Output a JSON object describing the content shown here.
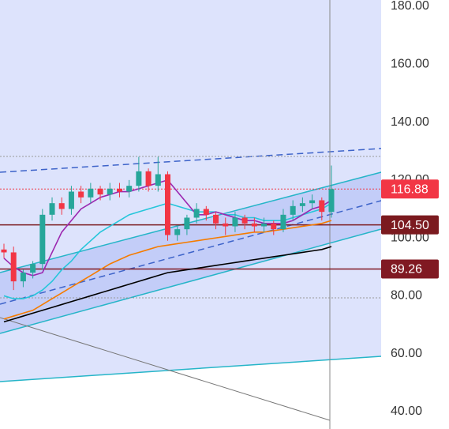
{
  "chart_data": {
    "type": "candlestick",
    "ylim": [
      40,
      180
    ],
    "yticks": [
      {
        "value": 40,
        "label": "40.00"
      },
      {
        "value": 60,
        "label": "60.00"
      },
      {
        "value": 80,
        "label": "80.00"
      },
      {
        "value": 100,
        "label": "100.00"
      },
      {
        "value": 120,
        "label": "120.00"
      },
      {
        "value": 140,
        "label": "140.00"
      },
      {
        "value": 160,
        "label": "160.00"
      },
      {
        "value": 180,
        "label": "180.00"
      }
    ],
    "up_color": "#26a69a",
    "down_color": "#f23645",
    "open": [
      96,
      95,
      85,
      88,
      91,
      108,
      112,
      110,
      116,
      114,
      117,
      115,
      117,
      116,
      118,
      123,
      118,
      122,
      101,
      103,
      107,
      110,
      108,
      105,
      104,
      107,
      105,
      104,
      105,
      103,
      108,
      111,
      112,
      113,
      109
    ],
    "close": [
      95,
      85,
      88,
      91,
      108,
      112,
      110,
      116,
      114,
      117,
      115,
      117,
      116,
      118,
      123,
      118,
      122,
      101,
      103,
      107,
      110,
      108,
      105,
      104,
      107,
      105,
      104,
      105,
      103,
      108,
      111,
      112,
      113,
      109,
      116.88
    ],
    "high": [
      98,
      97,
      89,
      92,
      110,
      114,
      114,
      118,
      118,
      119,
      118,
      119,
      119,
      120,
      128,
      124,
      128,
      123,
      104,
      108,
      112,
      111,
      109,
      107,
      109,
      108,
      107,
      107,
      106,
      110,
      113,
      114,
      115,
      114,
      125
    ],
    "low": [
      93,
      82,
      83,
      86,
      89,
      106,
      108,
      108,
      112,
      112,
      113,
      113,
      114,
      114,
      116,
      116,
      116,
      99,
      99,
      101,
      105,
      106,
      103,
      101,
      102,
      103,
      102,
      102,
      101,
      102,
      106,
      109,
      110,
      106,
      107
    ],
    "series": [
      {
        "color": "#000000",
        "values": [
          71,
          72,
          73,
          74,
          75,
          76,
          77,
          78,
          79,
          80,
          81,
          82,
          83,
          84,
          85,
          86,
          87,
          88,
          88.5,
          89,
          89.5,
          90,
          90.5,
          91,
          91.5,
          92,
          92.5,
          93,
          93.5,
          94,
          94.5,
          95,
          95.5,
          96,
          97
        ]
      },
      {
        "color": "#f57c00",
        "values": [
          72,
          73,
          74,
          75,
          77,
          79,
          81,
          83,
          85,
          87,
          89,
          91,
          92.5,
          94,
          95,
          96,
          97,
          97.5,
          98,
          98.5,
          99,
          99.5,
          100,
          100.5,
          101,
          101.5,
          102,
          102,
          102.5,
          103,
          103.5,
          104,
          104.5,
          105,
          106
        ]
      },
      {
        "color": "#26c6da",
        "values": [
          80,
          79,
          79,
          80,
          82,
          85,
          89,
          92,
          96,
          99,
          102,
          104,
          106,
          108,
          109,
          110,
          111,
          112,
          111,
          110,
          109,
          109,
          109,
          108,
          108,
          107,
          107,
          106,
          106,
          106,
          107,
          108,
          109,
          110,
          112
        ]
      },
      {
        "color": "#9c27b0",
        "values": [
          93,
          90,
          88,
          87,
          88,
          95,
          102,
          106,
          110,
          112,
          114,
          115,
          116,
          116,
          117,
          118,
          119,
          120,
          116,
          112,
          108,
          108,
          109,
          108,
          107,
          106,
          106,
          105,
          105,
          105,
          106,
          108,
          110,
          111,
          113
        ]
      }
    ],
    "price_lines": [
      {
        "values": 116.88,
        "value_labels": "116.88",
        "color": "#f23645"
      },
      {
        "values": 104.5,
        "value_labels": "104.50",
        "color": "#7b1a1f"
      },
      {
        "values": 89.26,
        "value_labels": "89.26",
        "color": "#801922"
      }
    ]
  }
}
